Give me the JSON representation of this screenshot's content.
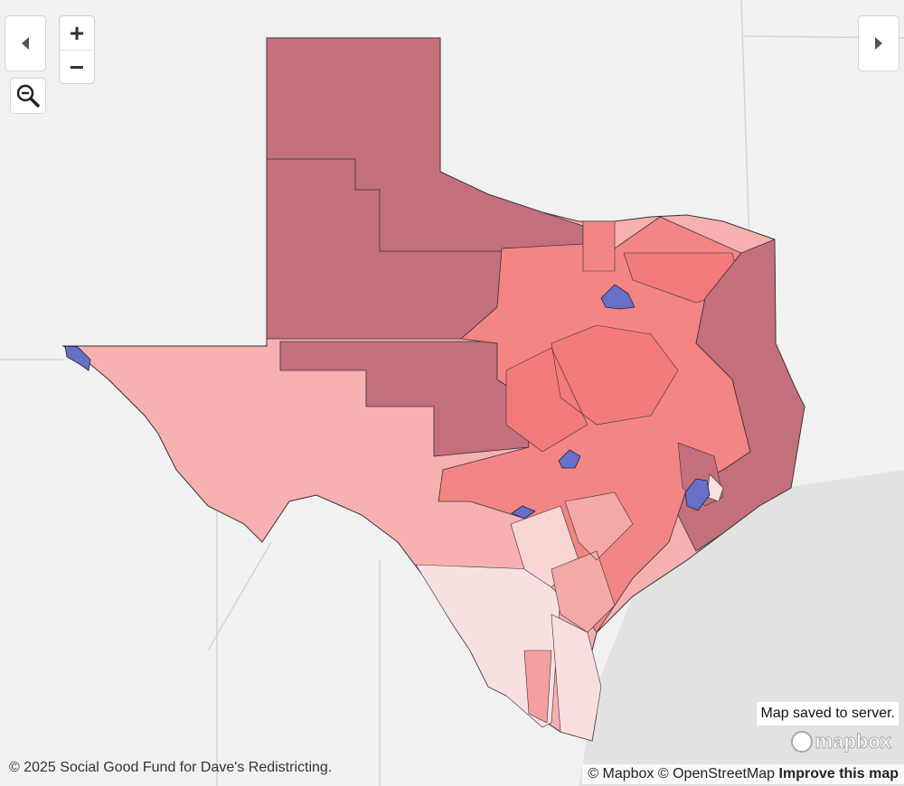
{
  "controls": {
    "zoom_in": "+",
    "zoom_out": "−"
  },
  "status": "Map saved to server.",
  "attribution": {
    "left": "© 2025 Social Good Fund for Dave's Redistricting.",
    "mapbox": "© Mapbox",
    "osm": "© OpenStreetMap",
    "improve": "Improve this map"
  },
  "logo": "mapbox"
}
